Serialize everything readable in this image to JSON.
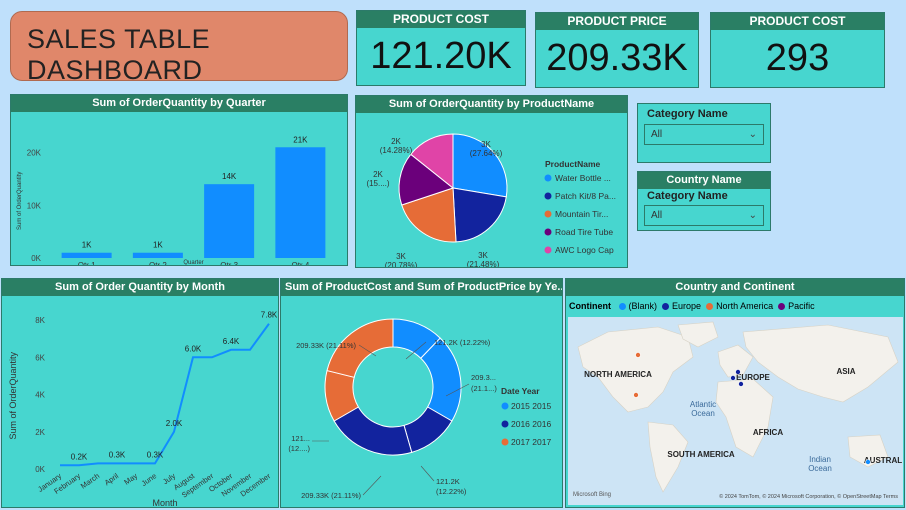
{
  "title": "SALES TABLE DASHBOARD",
  "kpis": [
    {
      "label": "PRODUCT COST",
      "value": "121.20K"
    },
    {
      "label": "PRODUCT PRICE",
      "value": "209.33K"
    },
    {
      "label": "PRODUCT COST",
      "value": "293"
    }
  ],
  "colors": {
    "bar": "#118dff",
    "panel": "#47d6cf",
    "header": "#2a7f64"
  },
  "quarter_chart": {
    "title": "Sum of OrderQuantity by Quarter",
    "ylabel": "Sum of OrderQuantity",
    "xlabel": "Quarter",
    "yticks": [
      "20K",
      "10K",
      "0K"
    ],
    "bars": [
      {
        "label": "Qtr 1",
        "value": 1,
        "display": "1K"
      },
      {
        "label": "Qtr 2",
        "value": 1,
        "display": "1K"
      },
      {
        "label": "Qtr 3",
        "value": 14,
        "display": "14K"
      },
      {
        "label": "Qtr 4",
        "value": 21,
        "display": "21K"
      }
    ]
  },
  "pie_chart": {
    "title": "Sum of OrderQuantity by ProductName",
    "legend_title": "ProductName",
    "slices": [
      {
        "name": "Water Bottle ...",
        "pct": 27.64,
        "color": "#118dff",
        "label1": "3K",
        "label2": "(27.64%)"
      },
      {
        "name": "Patch Kit/8 Pa...",
        "pct": 21.48,
        "color": "#12239e",
        "label1": "3K",
        "label2": "(21.48%)"
      },
      {
        "name": "Mountain Tir...",
        "pct": 20.78,
        "color": "#e66c37",
        "label1": "3K",
        "label2": "(20.78%)"
      },
      {
        "name": "Road Tire Tube",
        "pct": 15.82,
        "color": "#6b007b",
        "label1": "2K",
        "label2": "(15....)"
      },
      {
        "name": "AWC Logo Cap",
        "pct": 14.28,
        "color": "#e044a7",
        "label1": "2K",
        "label2": "(14.28%)"
      }
    ]
  },
  "slicers": {
    "category": {
      "label": "Category Name",
      "value": "All"
    },
    "country_header": "Country Name",
    "country_category": {
      "label": "Category Name",
      "value": "All"
    }
  },
  "month_chart": {
    "title": "Sum of Order Quantity by Month",
    "ylabel": "Sum of OrderQuantity",
    "xlabel": "Month",
    "yticks": [
      "8K",
      "6K",
      "4K",
      "2K",
      "0K"
    ],
    "months": [
      "January",
      "February",
      "March",
      "April",
      "May",
      "June",
      "July",
      "August",
      "September",
      "October",
      "November",
      "December"
    ],
    "values": [
      0.2,
      0.2,
      0.3,
      0.3,
      0.3,
      0.3,
      2.0,
      6.0,
      6.0,
      6.4,
      6.4,
      7.8
    ],
    "labels": [
      {
        "i": 1,
        "text": "0.2K"
      },
      {
        "i": 3,
        "text": "0.3K"
      },
      {
        "i": 5,
        "text": "0.3K"
      },
      {
        "i": 6,
        "text": "2.0K"
      },
      {
        "i": 7,
        "text": "6.0K"
      },
      {
        "i": 9,
        "text": "6.4K"
      },
      {
        "i": 11,
        "text": "7.8K"
      }
    ]
  },
  "donut_chart": {
    "title": "Sum of ProductCost and Sum of ProductPrice by Ye...",
    "legend_title": "Date Year",
    "legend": [
      {
        "name": "2015 2015",
        "color": "#118dff"
      },
      {
        "name": "2016 2016",
        "color": "#12239e"
      },
      {
        "name": "2017 2017",
        "color": "#e66c37"
      }
    ],
    "segments": [
      {
        "pct": 12.22,
        "color": "#118dff"
      },
      {
        "pct": 21.11,
        "color": "#118dff"
      },
      {
        "pct": 12.22,
        "color": "#12239e"
      },
      {
        "pct": 21.11,
        "color": "#12239e"
      },
      {
        "pct": 12.22,
        "color": "#e66c37"
      },
      {
        "pct": 21.11,
        "color": "#e66c37"
      }
    ],
    "labels": [
      "121.2K (12.22%)",
      "209.3...",
      "(21.1...)",
      "121.2K",
      "(12.22%)",
      "209.33K (21.11%)",
      "121...",
      "(12....)",
      "209.33K (21.11%)"
    ]
  },
  "map": {
    "title": "Country and Continent",
    "legend_title": "Continent",
    "legend": [
      {
        "name": "(Blank)",
        "color": "#118dff"
      },
      {
        "name": "Europe",
        "color": "#12239e"
      },
      {
        "name": "North America",
        "color": "#e66c37"
      },
      {
        "name": "Pacific",
        "color": "#6b007b"
      }
    ],
    "places": [
      "NORTH AMERICA",
      "EUROPE",
      "ASIA",
      "Atlantic",
      "Ocean",
      "AFRICA",
      "SOUTH AMERICA",
      "Indian",
      "Ocean",
      "AUSTRAL"
    ],
    "attribution": "© 2024 TomTom, © 2024 Microsoft Corporation, © OpenStreetMap  Terms",
    "brand": "Microsoft Bing"
  }
}
